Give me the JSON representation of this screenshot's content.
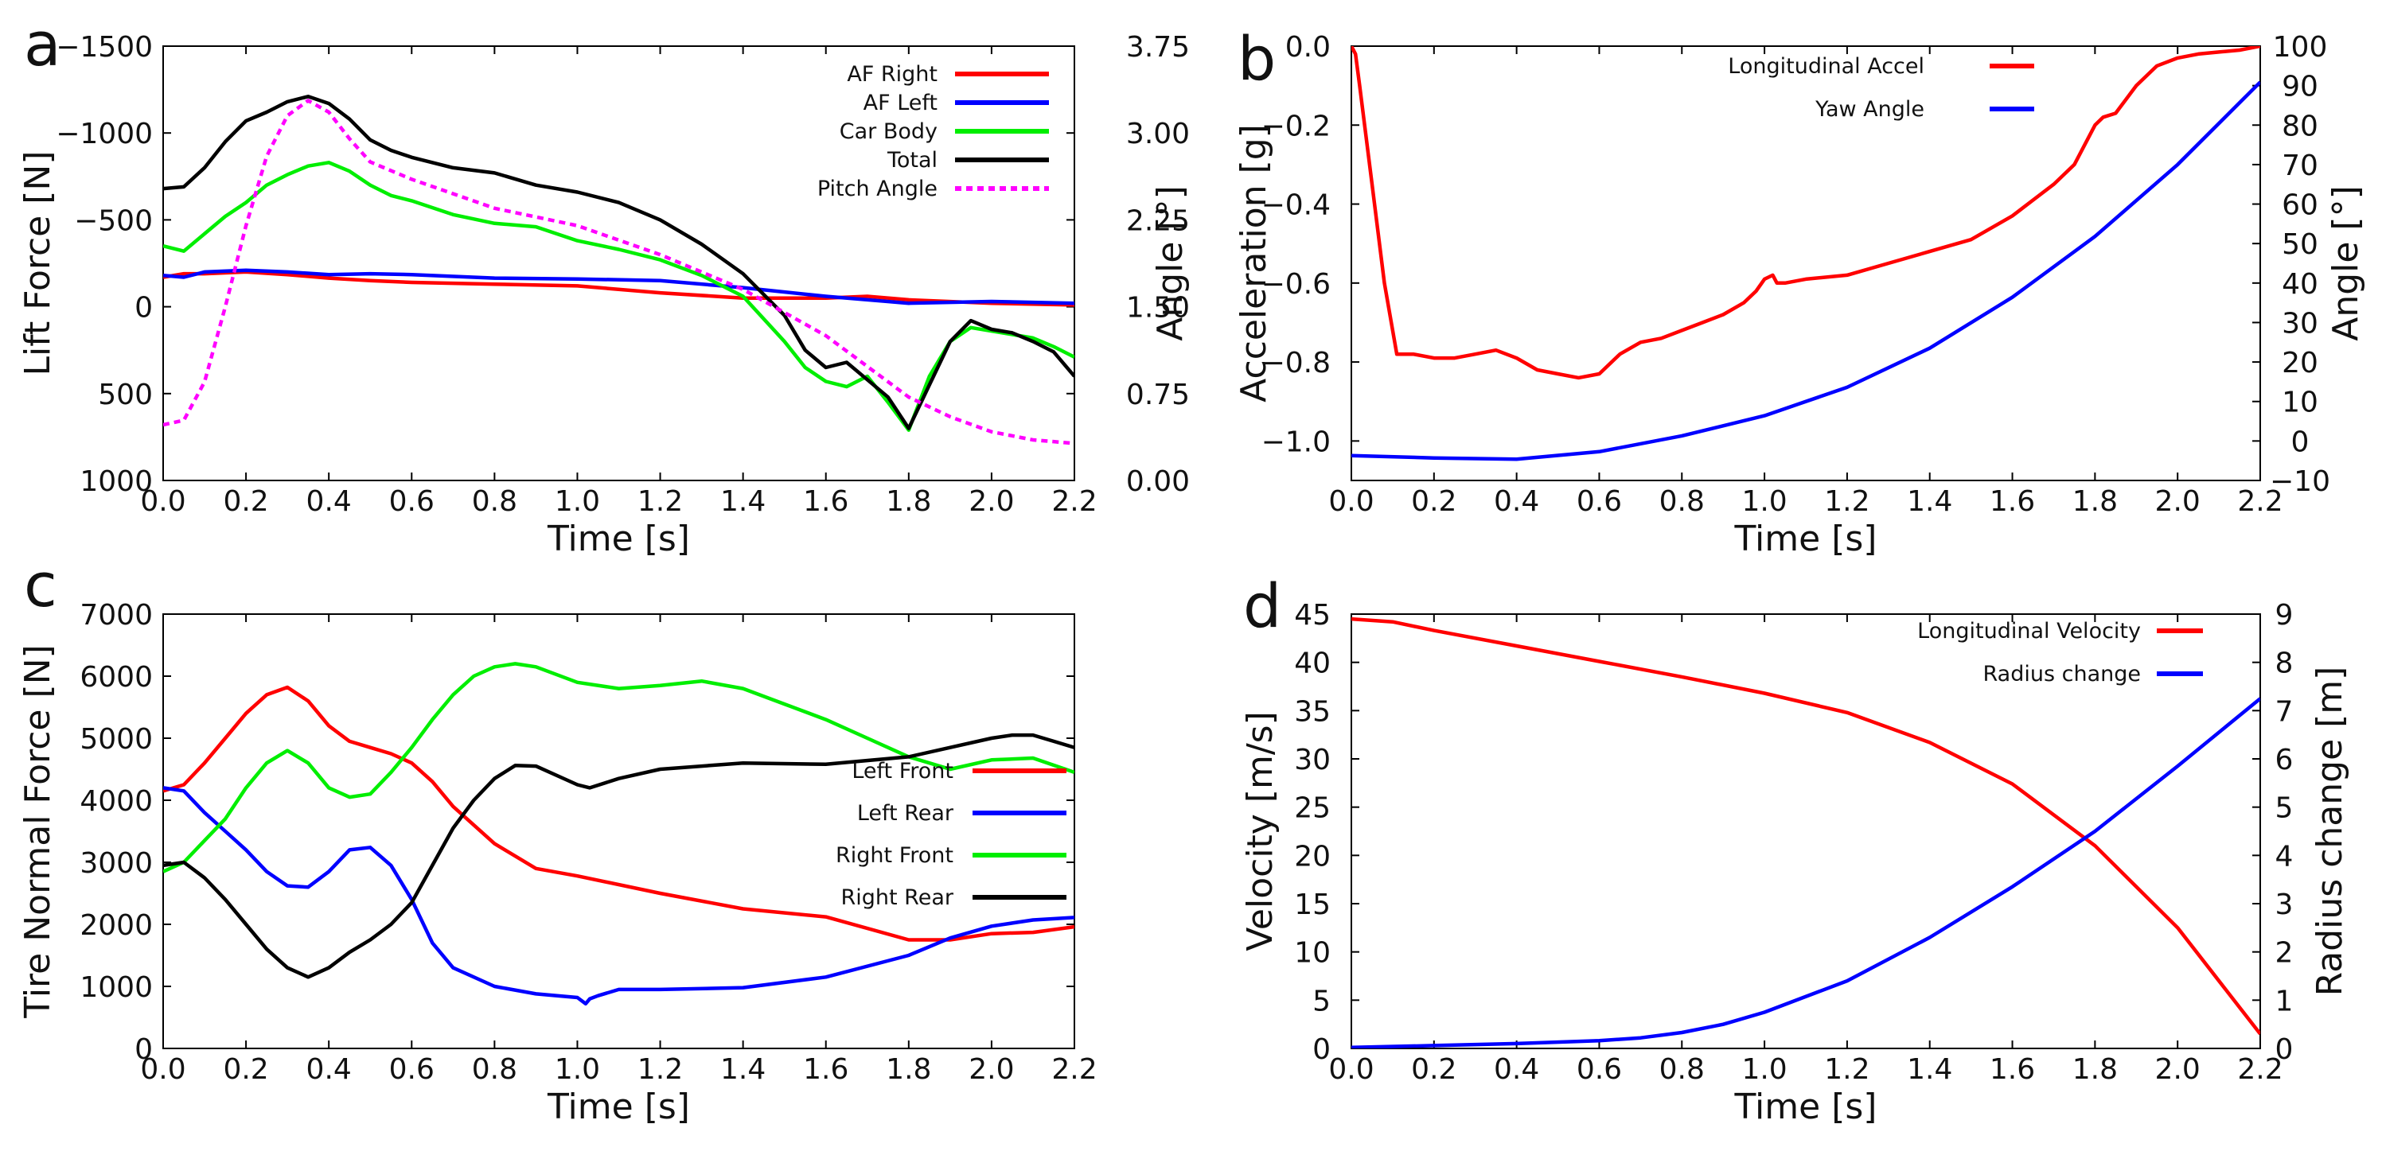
{
  "figure": {
    "panels": [
      {
        "id": "a",
        "letter": "a"
      },
      {
        "id": "b",
        "letter": "b"
      },
      {
        "id": "c",
        "letter": "c"
      },
      {
        "id": "d",
        "letter": "d"
      }
    ]
  },
  "chart_data": [
    {
      "panel": "a",
      "type": "line",
      "xlabel": "Time [s]",
      "ylabel": "Lift Force [N]",
      "y2label": "Angle [°]",
      "xlim": [
        0,
        2.2
      ],
      "ylim": [
        1000,
        -1500
      ],
      "y2lim": [
        0,
        3.75
      ],
      "y_inverted": true,
      "xticks": [
        "0.0",
        "0.2",
        "0.4",
        "0.6",
        "0.8",
        "1.0",
        "1.2",
        "1.4",
        "1.6",
        "1.8",
        "2.0",
        "2.2"
      ],
      "xtick_values": [
        0,
        0.2,
        0.4,
        0.6,
        0.8,
        1.0,
        1.2,
        1.4,
        1.6,
        1.8,
        2.0,
        2.2
      ],
      "yticks": [
        "−1500",
        "−1000",
        "−500",
        "0",
        "500",
        "1000"
      ],
      "ytick_values": [
        -1500,
        -1000,
        -500,
        0,
        500,
        1000
      ],
      "y2ticks": [
        "3.75",
        "3.00",
        "2.25",
        "1.50",
        "0.75",
        "0.00"
      ],
      "y2tick_values": [
        3.75,
        3.0,
        2.25,
        1.5,
        0.75,
        0
      ],
      "legend_position": "top-right",
      "series": [
        {
          "name": "AF Right",
          "color": "#ff0000",
          "axis": "left",
          "x": [
            0,
            0.05,
            0.1,
            0.2,
            0.3,
            0.4,
            0.5,
            0.6,
            0.8,
            1.0,
            1.2,
            1.4,
            1.6,
            1.7,
            1.8,
            2.0,
            2.2
          ],
          "y": [
            -170,
            -190,
            -190,
            -200,
            -185,
            -165,
            -150,
            -140,
            -130,
            -120,
            -80,
            -50,
            -50,
            -60,
            -40,
            -20,
            -10
          ]
        },
        {
          "name": "AF Left",
          "color": "#0000ff",
          "axis": "left",
          "x": [
            0,
            0.05,
            0.1,
            0.2,
            0.3,
            0.4,
            0.5,
            0.6,
            0.8,
            1.0,
            1.2,
            1.4,
            1.6,
            1.8,
            2.0,
            2.2
          ],
          "y": [
            -180,
            -170,
            -200,
            -210,
            -200,
            -185,
            -190,
            -185,
            -165,
            -160,
            -150,
            -110,
            -60,
            -20,
            -30,
            -20
          ]
        },
        {
          "name": "Car Body",
          "color": "#00ee00",
          "axis": "left",
          "x": [
            0,
            0.05,
            0.1,
            0.15,
            0.2,
            0.25,
            0.3,
            0.35,
            0.4,
            0.45,
            0.5,
            0.55,
            0.6,
            0.7,
            0.8,
            0.9,
            1.0,
            1.1,
            1.2,
            1.3,
            1.4,
            1.5,
            1.55,
            1.6,
            1.65,
            1.7,
            1.75,
            1.8,
            1.85,
            1.9,
            1.95,
            2.0,
            2.05,
            2.1,
            2.15,
            2.2
          ],
          "y": [
            -350,
            -320,
            -420,
            -520,
            -600,
            -700,
            -760,
            -810,
            -830,
            -780,
            -700,
            -640,
            -610,
            -530,
            -480,
            -460,
            -380,
            -330,
            -270,
            -180,
            -60,
            200,
            350,
            430,
            460,
            400,
            550,
            710,
            400,
            200,
            120,
            140,
            160,
            180,
            230,
            290
          ]
        },
        {
          "name": "Total",
          "color": "#000000",
          "axis": "left",
          "x": [
            0,
            0.05,
            0.1,
            0.15,
            0.2,
            0.25,
            0.3,
            0.35,
            0.4,
            0.45,
            0.5,
            0.55,
            0.6,
            0.7,
            0.8,
            0.9,
            1.0,
            1.1,
            1.2,
            1.3,
            1.4,
            1.5,
            1.55,
            1.6,
            1.65,
            1.7,
            1.75,
            1.8,
            1.85,
            1.9,
            1.95,
            2.0,
            2.05,
            2.1,
            2.15,
            2.2
          ],
          "y": [
            -680,
            -690,
            -800,
            -950,
            -1070,
            -1120,
            -1180,
            -1210,
            -1170,
            -1080,
            -960,
            -900,
            -860,
            -800,
            -770,
            -700,
            -660,
            -600,
            -500,
            -360,
            -190,
            50,
            250,
            350,
            320,
            420,
            520,
            700,
            450,
            200,
            80,
            130,
            150,
            200,
            260,
            400
          ]
        },
        {
          "name": "Pitch Angle",
          "color": "#ff00ff",
          "axis": "right",
          "dashed": true,
          "x": [
            0,
            0.05,
            0.1,
            0.15,
            0.2,
            0.25,
            0.3,
            0.35,
            0.4,
            0.45,
            0.5,
            0.6,
            0.8,
            1.0,
            1.2,
            1.4,
            1.6,
            1.8,
            1.9,
            2.0,
            2.1,
            2.2
          ],
          "y": [
            0.48,
            0.52,
            0.85,
            1.5,
            2.2,
            2.8,
            3.15,
            3.28,
            3.18,
            2.95,
            2.75,
            2.6,
            2.35,
            2.2,
            1.95,
            1.65,
            1.25,
            0.72,
            0.55,
            0.42,
            0.35,
            0.32
          ]
        }
      ]
    },
    {
      "panel": "b",
      "type": "line",
      "xlabel": "Time [s]",
      "ylabel": "Acceleration [g]",
      "y2label": "Angle [°]",
      "xlim": [
        0,
        2.2
      ],
      "ylim": [
        -1.1,
        0
      ],
      "y2lim": [
        -10,
        100
      ],
      "xticks": [
        "0.0",
        "0.2",
        "0.4",
        "0.6",
        "0.8",
        "1.0",
        "1.2",
        "1.4",
        "1.6",
        "1.8",
        "2.0",
        "2.2"
      ],
      "xtick_values": [
        0,
        0.2,
        0.4,
        0.6,
        0.8,
        1.0,
        1.2,
        1.4,
        1.6,
        1.8,
        2.0,
        2.2
      ],
      "yticks": [
        "0.0",
        "−0.2",
        "−0.4",
        "−0.6",
        "−0.8",
        "−1.0"
      ],
      "ytick_values": [
        0,
        -0.2,
        -0.4,
        -0.6,
        -0.8,
        -1.0
      ],
      "y2ticks": [
        "100",
        "90",
        "80",
        "70",
        "60",
        "50",
        "40",
        "30",
        "20",
        "10",
        "0",
        "−10"
      ],
      "y2tick_values": [
        100,
        90,
        80,
        70,
        60,
        50,
        40,
        30,
        20,
        10,
        0,
        -10
      ],
      "legend_position": "top-center",
      "series": [
        {
          "name": "Longitudinal Accel",
          "color": "#ff0000",
          "axis": "left",
          "x": [
            0,
            0.01,
            0.02,
            0.05,
            0.08,
            0.11,
            0.15,
            0.2,
            0.25,
            0.3,
            0.35,
            0.4,
            0.45,
            0.5,
            0.55,
            0.6,
            0.65,
            0.7,
            0.75,
            0.8,
            0.85,
            0.9,
            0.95,
            0.98,
            1.0,
            1.02,
            1.03,
            1.05,
            1.1,
            1.2,
            1.3,
            1.4,
            1.5,
            1.6,
            1.7,
            1.75,
            1.8,
            1.82,
            1.85,
            1.9,
            1.95,
            2.0,
            2.05,
            2.1,
            2.15,
            2.2
          ],
          "y": [
            0,
            -0.02,
            -0.1,
            -0.35,
            -0.6,
            -0.78,
            -0.78,
            -0.79,
            -0.79,
            -0.78,
            -0.77,
            -0.79,
            -0.82,
            -0.83,
            -0.84,
            -0.83,
            -0.78,
            -0.75,
            -0.74,
            -0.72,
            -0.7,
            -0.68,
            -0.65,
            -0.62,
            -0.59,
            -0.58,
            -0.6,
            -0.6,
            -0.59,
            -0.58,
            -0.55,
            -0.52,
            -0.49,
            -0.43,
            -0.35,
            -0.3,
            -0.2,
            -0.18,
            -0.17,
            -0.1,
            -0.05,
            -0.03,
            -0.02,
            -0.015,
            -0.01,
            0
          ]
        },
        {
          "name": "Yaw Angle",
          "color": "#0000ff",
          "axis": "right",
          "x": [
            0,
            0.2,
            0.4,
            0.6,
            0.8,
            1.0,
            1.2,
            1.4,
            1.6,
            1.8,
            2.0,
            2.2
          ],
          "y": [
            -3.7,
            -4.3,
            -4.6,
            -2.7,
            1.3,
            6.4,
            13.6,
            23.5,
            36.4,
            51.8,
            70.0,
            90.9
          ]
        }
      ]
    },
    {
      "panel": "c",
      "type": "line",
      "xlabel": "Time [s]",
      "ylabel": "Tire Normal Force [N]",
      "xlim": [
        0,
        2.2
      ],
      "ylim": [
        0,
        7000
      ],
      "xticks": [
        "0.0",
        "0.2",
        "0.4",
        "0.6",
        "0.8",
        "1.0",
        "1.2",
        "1.4",
        "1.6",
        "1.8",
        "2.0",
        "2.2"
      ],
      "xtick_values": [
        0,
        0.2,
        0.4,
        0.6,
        0.8,
        1.0,
        1.2,
        1.4,
        1.6,
        1.8,
        2.0,
        2.2
      ],
      "yticks": [
        "7000",
        "6000",
        "5000",
        "4000",
        "3000",
        "2000",
        "1000",
        "0"
      ],
      "ytick_values": [
        7000,
        6000,
        5000,
        4000,
        3000,
        2000,
        1000,
        0
      ],
      "legend_position": "center-right",
      "series": [
        {
          "name": "Left Front",
          "color": "#ff0000",
          "x": [
            0,
            0.05,
            0.1,
            0.15,
            0.2,
            0.25,
            0.3,
            0.35,
            0.4,
            0.45,
            0.5,
            0.55,
            0.6,
            0.65,
            0.7,
            0.8,
            0.9,
            1.0,
            1.2,
            1.4,
            1.6,
            1.8,
            1.9,
            2.0,
            2.1,
            2.2
          ],
          "y": [
            4150,
            4250,
            4600,
            5000,
            5400,
            5700,
            5820,
            5600,
            5200,
            4950,
            4850,
            4750,
            4600,
            4300,
            3900,
            3300,
            2900,
            2780,
            2500,
            2250,
            2120,
            1750,
            1750,
            1850,
            1870,
            1960
          ]
        },
        {
          "name": "Left Rear",
          "color": "#0000ff",
          "x": [
            0,
            0.05,
            0.1,
            0.15,
            0.2,
            0.25,
            0.3,
            0.35,
            0.4,
            0.45,
            0.5,
            0.55,
            0.6,
            0.65,
            0.7,
            0.8,
            0.9,
            1.0,
            1.02,
            1.03,
            1.05,
            1.1,
            1.2,
            1.4,
            1.6,
            1.8,
            1.9,
            2.0,
            2.1,
            2.2
          ],
          "y": [
            4200,
            4150,
            3800,
            3500,
            3200,
            2850,
            2620,
            2600,
            2850,
            3200,
            3240,
            2950,
            2400,
            1700,
            1300,
            1000,
            880,
            820,
            720,
            800,
            850,
            950,
            950,
            980,
            1150,
            1500,
            1780,
            1970,
            2070,
            2110
          ]
        },
        {
          "name": "Right Front",
          "color": "#00ee00",
          "x": [
            0,
            0.05,
            0.1,
            0.15,
            0.2,
            0.25,
            0.3,
            0.35,
            0.4,
            0.45,
            0.5,
            0.55,
            0.6,
            0.65,
            0.7,
            0.75,
            0.8,
            0.85,
            0.9,
            1.0,
            1.1,
            1.2,
            1.3,
            1.4,
            1.5,
            1.6,
            1.7,
            1.8,
            1.9,
            2.0,
            2.1,
            2.2
          ],
          "y": [
            2850,
            3000,
            3350,
            3700,
            4200,
            4600,
            4800,
            4600,
            4200,
            4050,
            4100,
            4450,
            4850,
            5300,
            5700,
            6000,
            6150,
            6200,
            6150,
            5900,
            5800,
            5850,
            5920,
            5800,
            5550,
            5300,
            5000,
            4700,
            4500,
            4650,
            4680,
            4450
          ]
        },
        {
          "name": "Right Rear",
          "color": "#000000",
          "x": [
            0,
            0.05,
            0.1,
            0.15,
            0.2,
            0.25,
            0.3,
            0.35,
            0.4,
            0.45,
            0.5,
            0.55,
            0.6,
            0.65,
            0.7,
            0.75,
            0.8,
            0.85,
            0.9,
            1.0,
            1.03,
            1.1,
            1.2,
            1.4,
            1.6,
            1.8,
            1.9,
            2.0,
            2.05,
            2.1,
            2.15,
            2.2
          ],
          "y": [
            2950,
            3000,
            2750,
            2400,
            2000,
            1600,
            1300,
            1150,
            1300,
            1550,
            1750,
            2000,
            2350,
            2950,
            3550,
            4000,
            4350,
            4560,
            4550,
            4250,
            4200,
            4350,
            4500,
            4600,
            4580,
            4700,
            4850,
            5000,
            5050,
            5050,
            4950,
            4850
          ]
        }
      ]
    },
    {
      "panel": "d",
      "type": "line",
      "xlabel": "Time [s]",
      "ylabel": "Velocity [m/s]",
      "y2label": "Radius change [m]",
      "xlim": [
        0,
        2.2
      ],
      "ylim": [
        0,
        45
      ],
      "y2lim": [
        0,
        9
      ],
      "xticks": [
        "0.0",
        "0.2",
        "0.4",
        "0.6",
        "0.8",
        "1.0",
        "1.2",
        "1.4",
        "1.6",
        "1.8",
        "2.0",
        "2.2"
      ],
      "xtick_values": [
        0,
        0.2,
        0.4,
        0.6,
        0.8,
        1.0,
        1.2,
        1.4,
        1.6,
        1.8,
        2.0,
        2.2
      ],
      "yticks": [
        "45",
        "40",
        "35",
        "30",
        "25",
        "20",
        "15",
        "10",
        "5",
        "0"
      ],
      "ytick_values": [
        45,
        40,
        35,
        30,
        25,
        20,
        15,
        10,
        5,
        0
      ],
      "y2ticks": [
        "9",
        "8",
        "7",
        "6",
        "5",
        "4",
        "3",
        "2",
        "1",
        "0"
      ],
      "y2tick_values": [
        9,
        8,
        7,
        6,
        5,
        4,
        3,
        2,
        1,
        0
      ],
      "legend_position": "top-right",
      "series": [
        {
          "name": "Longitudinal Velocity",
          "color": "#ff0000",
          "axis": "left",
          "x": [
            0,
            0.1,
            0.2,
            0.4,
            0.6,
            0.8,
            1.0,
            1.2,
            1.4,
            1.6,
            1.8,
            2.0,
            2.2
          ],
          "y": [
            44.5,
            44.2,
            43.3,
            41.7,
            40.1,
            38.5,
            36.8,
            34.8,
            31.7,
            27.4,
            21.0,
            12.5,
            1.5
          ]
        },
        {
          "name": "Radius change",
          "color": "#0000ff",
          "axis": "right",
          "x": [
            0,
            0.2,
            0.4,
            0.6,
            0.7,
            0.8,
            0.9,
            1.0,
            1.2,
            1.4,
            1.6,
            1.8,
            2.0,
            2.2
          ],
          "y": [
            0.02,
            0.06,
            0.1,
            0.16,
            0.22,
            0.33,
            0.5,
            0.75,
            1.4,
            2.3,
            3.35,
            4.5,
            5.85,
            7.25
          ]
        }
      ]
    }
  ]
}
